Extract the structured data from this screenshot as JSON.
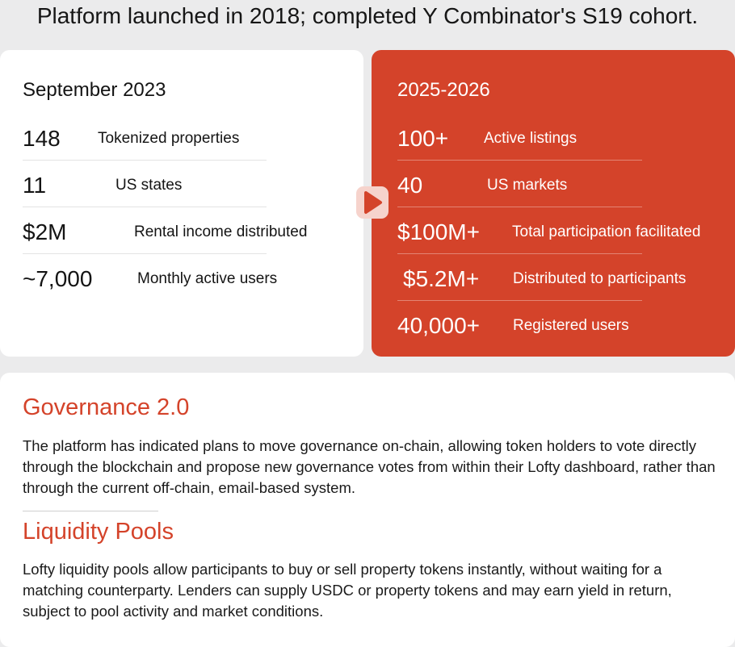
{
  "headline": "Platform launched in 2018; completed Y Combinator's S19 cohort.",
  "before": {
    "title": "September 2023",
    "stats": [
      {
        "value": "148",
        "label": "Tokenized properties"
      },
      {
        "value": "11",
        "label": "US states"
      },
      {
        "value": "$2M",
        "label": "Rental income distributed"
      },
      {
        "value": "~7,000",
        "label": "Monthly active users"
      }
    ]
  },
  "after": {
    "title": "2025-2026",
    "stats": [
      {
        "value": "100+",
        "label": "Active listings"
      },
      {
        "value": "40",
        "label": "US markets"
      },
      {
        "value": "$100M+",
        "label": "Total participation facilitated"
      },
      {
        "value": "$5.2M+",
        "label": "Distributed to participants"
      },
      {
        "value": "40,000+",
        "label": "Registered users"
      }
    ]
  },
  "arrow_icon": "play-arrow-icon",
  "sections": [
    {
      "heading": "Governance 2.0",
      "body": "The platform has indicated plans to move governance on-chain, allowing token holders to vote directly through the blockchain and propose new governance votes from within their Lofty dashboard, rather than through the current off-chain, email-based system."
    },
    {
      "heading": "Liquidity Pools",
      "body": "Lofty liquidity pools allow participants to buy or sell property tokens instantly, without waiting for a matching counterparty. Lenders can supply USDC or property tokens and may earn yield in return, subject to pool activity and market conditions."
    }
  ],
  "colors": {
    "accent": "#d4432a",
    "background": "#ebebec",
    "card": "#ffffff"
  }
}
